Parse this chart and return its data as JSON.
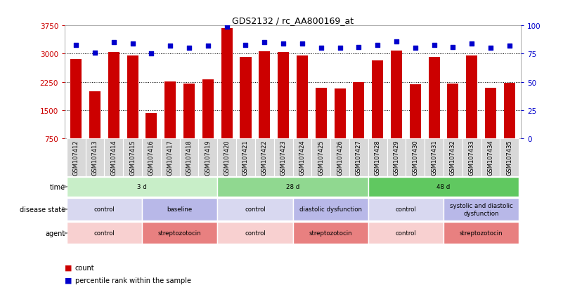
{
  "title": "GDS2132 / rc_AA800169_at",
  "samples": [
    "GSM107412",
    "GSM107413",
    "GSM107414",
    "GSM107415",
    "GSM107416",
    "GSM107417",
    "GSM107418",
    "GSM107419",
    "GSM107420",
    "GSM107421",
    "GSM107422",
    "GSM107423",
    "GSM107424",
    "GSM107425",
    "GSM107426",
    "GSM107427",
    "GSM107428",
    "GSM107429",
    "GSM107430",
    "GSM107431",
    "GSM107432",
    "GSM107433",
    "GSM107434",
    "GSM107435"
  ],
  "counts": [
    2850,
    2000,
    3050,
    2950,
    1430,
    2270,
    2200,
    2320,
    3680,
    2920,
    3060,
    3050,
    2950,
    2100,
    2080,
    2250,
    2820,
    3080,
    2180,
    2920,
    2210,
    2950,
    2100,
    2220
  ],
  "percentile": [
    83,
    76,
    85,
    84,
    75,
    82,
    80,
    82,
    99,
    83,
    85,
    84,
    84,
    80,
    80,
    81,
    83,
    86,
    80,
    83,
    81,
    84,
    80,
    82
  ],
  "ylim_left": [
    750,
    3750
  ],
  "ylim_right": [
    0,
    100
  ],
  "yticks_left": [
    750,
    1500,
    2250,
    3000,
    3750
  ],
  "yticks_right": [
    0,
    25,
    50,
    75,
    100
  ],
  "bar_color": "#cc0000",
  "dot_color": "#0000cc",
  "background_color": "#ffffff",
  "gridline_color": "#000000",
  "time_groups": [
    {
      "label": "3 d",
      "start": 0,
      "end": 8,
      "color": "#c8eec8"
    },
    {
      "label": "28 d",
      "start": 8,
      "end": 16,
      "color": "#90d890"
    },
    {
      "label": "48 d",
      "start": 16,
      "end": 24,
      "color": "#60c860"
    }
  ],
  "disease_groups": [
    {
      "label": "control",
      "start": 0,
      "end": 4,
      "color": "#d8d8f0"
    },
    {
      "label": "baseline",
      "start": 4,
      "end": 8,
      "color": "#b8b8e8"
    },
    {
      "label": "control",
      "start": 8,
      "end": 12,
      "color": "#d8d8f0"
    },
    {
      "label": "diastolic dysfunction",
      "start": 12,
      "end": 16,
      "color": "#b8b8e8"
    },
    {
      "label": "control",
      "start": 16,
      "end": 20,
      "color": "#d8d8f0"
    },
    {
      "label": "systolic and diastolic\ndysfunction",
      "start": 20,
      "end": 24,
      "color": "#b8b8e8"
    }
  ],
  "agent_groups": [
    {
      "label": "control",
      "start": 0,
      "end": 4,
      "color": "#f8d0d0"
    },
    {
      "label": "streptozotocin",
      "start": 4,
      "end": 8,
      "color": "#e88080"
    },
    {
      "label": "control",
      "start": 8,
      "end": 12,
      "color": "#f8d0d0"
    },
    {
      "label": "streptozotocin",
      "start": 12,
      "end": 16,
      "color": "#e88080"
    },
    {
      "label": "control",
      "start": 16,
      "end": 20,
      "color": "#f8d0d0"
    },
    {
      "label": "streptozotocin",
      "start": 20,
      "end": 24,
      "color": "#e88080"
    }
  ],
  "label_arrow_color": "#888888",
  "xtick_bg_color": "#d8d8d8",
  "legend_count_color": "#cc0000",
  "legend_dot_color": "#0000cc",
  "legend_count_label": "count",
  "legend_dot_label": "percentile rank within the sample"
}
